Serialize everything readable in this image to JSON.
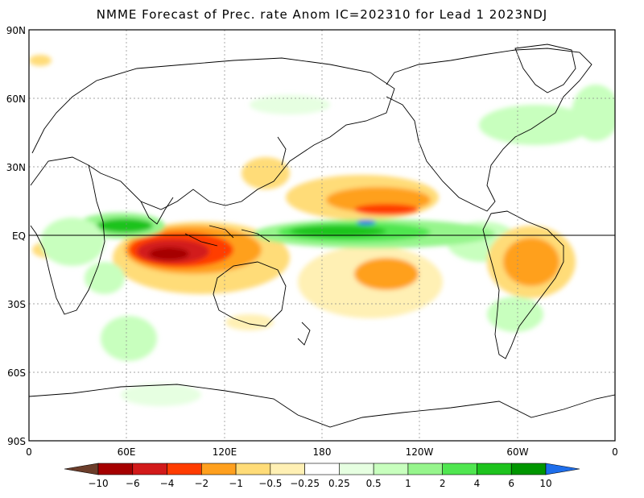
{
  "title": "NMME Forecast of Prec. rate Anom IC=202310 for Lead 1 2023NDJ",
  "lat_labels": [
    "90N",
    "60N",
    "30N",
    "EQ",
    "30S",
    "60S",
    "90S"
  ],
  "lon_labels": [
    "0",
    "60E",
    "120E",
    "180",
    "120W",
    "60W",
    "0"
  ],
  "colorbar": {
    "labels": [
      "−10",
      "−6",
      "−4",
      "−2",
      "−1",
      "−0.5",
      "−0.25",
      "0.25",
      "0.5",
      "1",
      "2",
      "4",
      "6",
      "10"
    ],
    "colors": [
      "#6b3d2a",
      "#a50000",
      "#d21a1a",
      "#ff3c00",
      "#ffa01e",
      "#ffdc78",
      "#fff0b4",
      "#ffffff",
      "#e6ffe1",
      "#c8ffbe",
      "#96f58c",
      "#50e650",
      "#1ec31e",
      "#009600",
      "#1e6eeb"
    ]
  },
  "map": {
    "region": "global",
    "projection": "equirectangular",
    "lon_range": [
      0,
      360
    ],
    "lat_range": [
      -90,
      90
    ],
    "grid": true,
    "field": "precipitation rate anomaly"
  }
}
